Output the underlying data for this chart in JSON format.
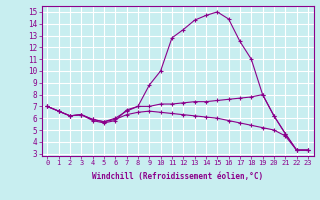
{
  "xlabel": "Windchill (Refroidissement éolien,°C)",
  "x": [
    0,
    1,
    2,
    3,
    4,
    5,
    6,
    7,
    8,
    9,
    10,
    11,
    12,
    13,
    14,
    15,
    16,
    17,
    18,
    19,
    20,
    21,
    22,
    23
  ],
  "line1": [
    7.0,
    6.6,
    6.2,
    6.3,
    5.8,
    5.6,
    5.8,
    6.7,
    7.0,
    8.8,
    10.0,
    12.8,
    13.5,
    14.3,
    14.7,
    15.0,
    14.4,
    12.5,
    11.0,
    8.0,
    6.2,
    4.7,
    3.3,
    3.3
  ],
  "line2": [
    7.0,
    6.6,
    6.2,
    6.3,
    5.9,
    5.7,
    6.0,
    6.6,
    7.0,
    7.0,
    7.2,
    7.2,
    7.3,
    7.4,
    7.4,
    7.5,
    7.6,
    7.7,
    7.8,
    8.0,
    6.2,
    4.7,
    3.3,
    3.3
  ],
  "line3": [
    7.0,
    6.6,
    6.2,
    6.3,
    5.9,
    5.7,
    5.9,
    6.3,
    6.5,
    6.6,
    6.5,
    6.4,
    6.3,
    6.2,
    6.1,
    6.0,
    5.8,
    5.6,
    5.4,
    5.2,
    5.0,
    4.5,
    3.3,
    3.3
  ],
  "line_color": "#8B008B",
  "bg_color": "#C8EEF0",
  "grid_color": "#FFFFFF",
  "ylim": [
    2.8,
    15.5
  ],
  "xlim": [
    -0.5,
    23.5
  ],
  "yticks": [
    3,
    4,
    5,
    6,
    7,
    8,
    9,
    10,
    11,
    12,
    13,
    14,
    15
  ],
  "xticks": [
    0,
    1,
    2,
    3,
    4,
    5,
    6,
    7,
    8,
    9,
    10,
    11,
    12,
    13,
    14,
    15,
    16,
    17,
    18,
    19,
    20,
    21,
    22,
    23
  ],
  "marker": "+",
  "ms": 3,
  "lw": 0.8,
  "tick_fontsize": 5,
  "xlabel_fontsize": 5.5
}
